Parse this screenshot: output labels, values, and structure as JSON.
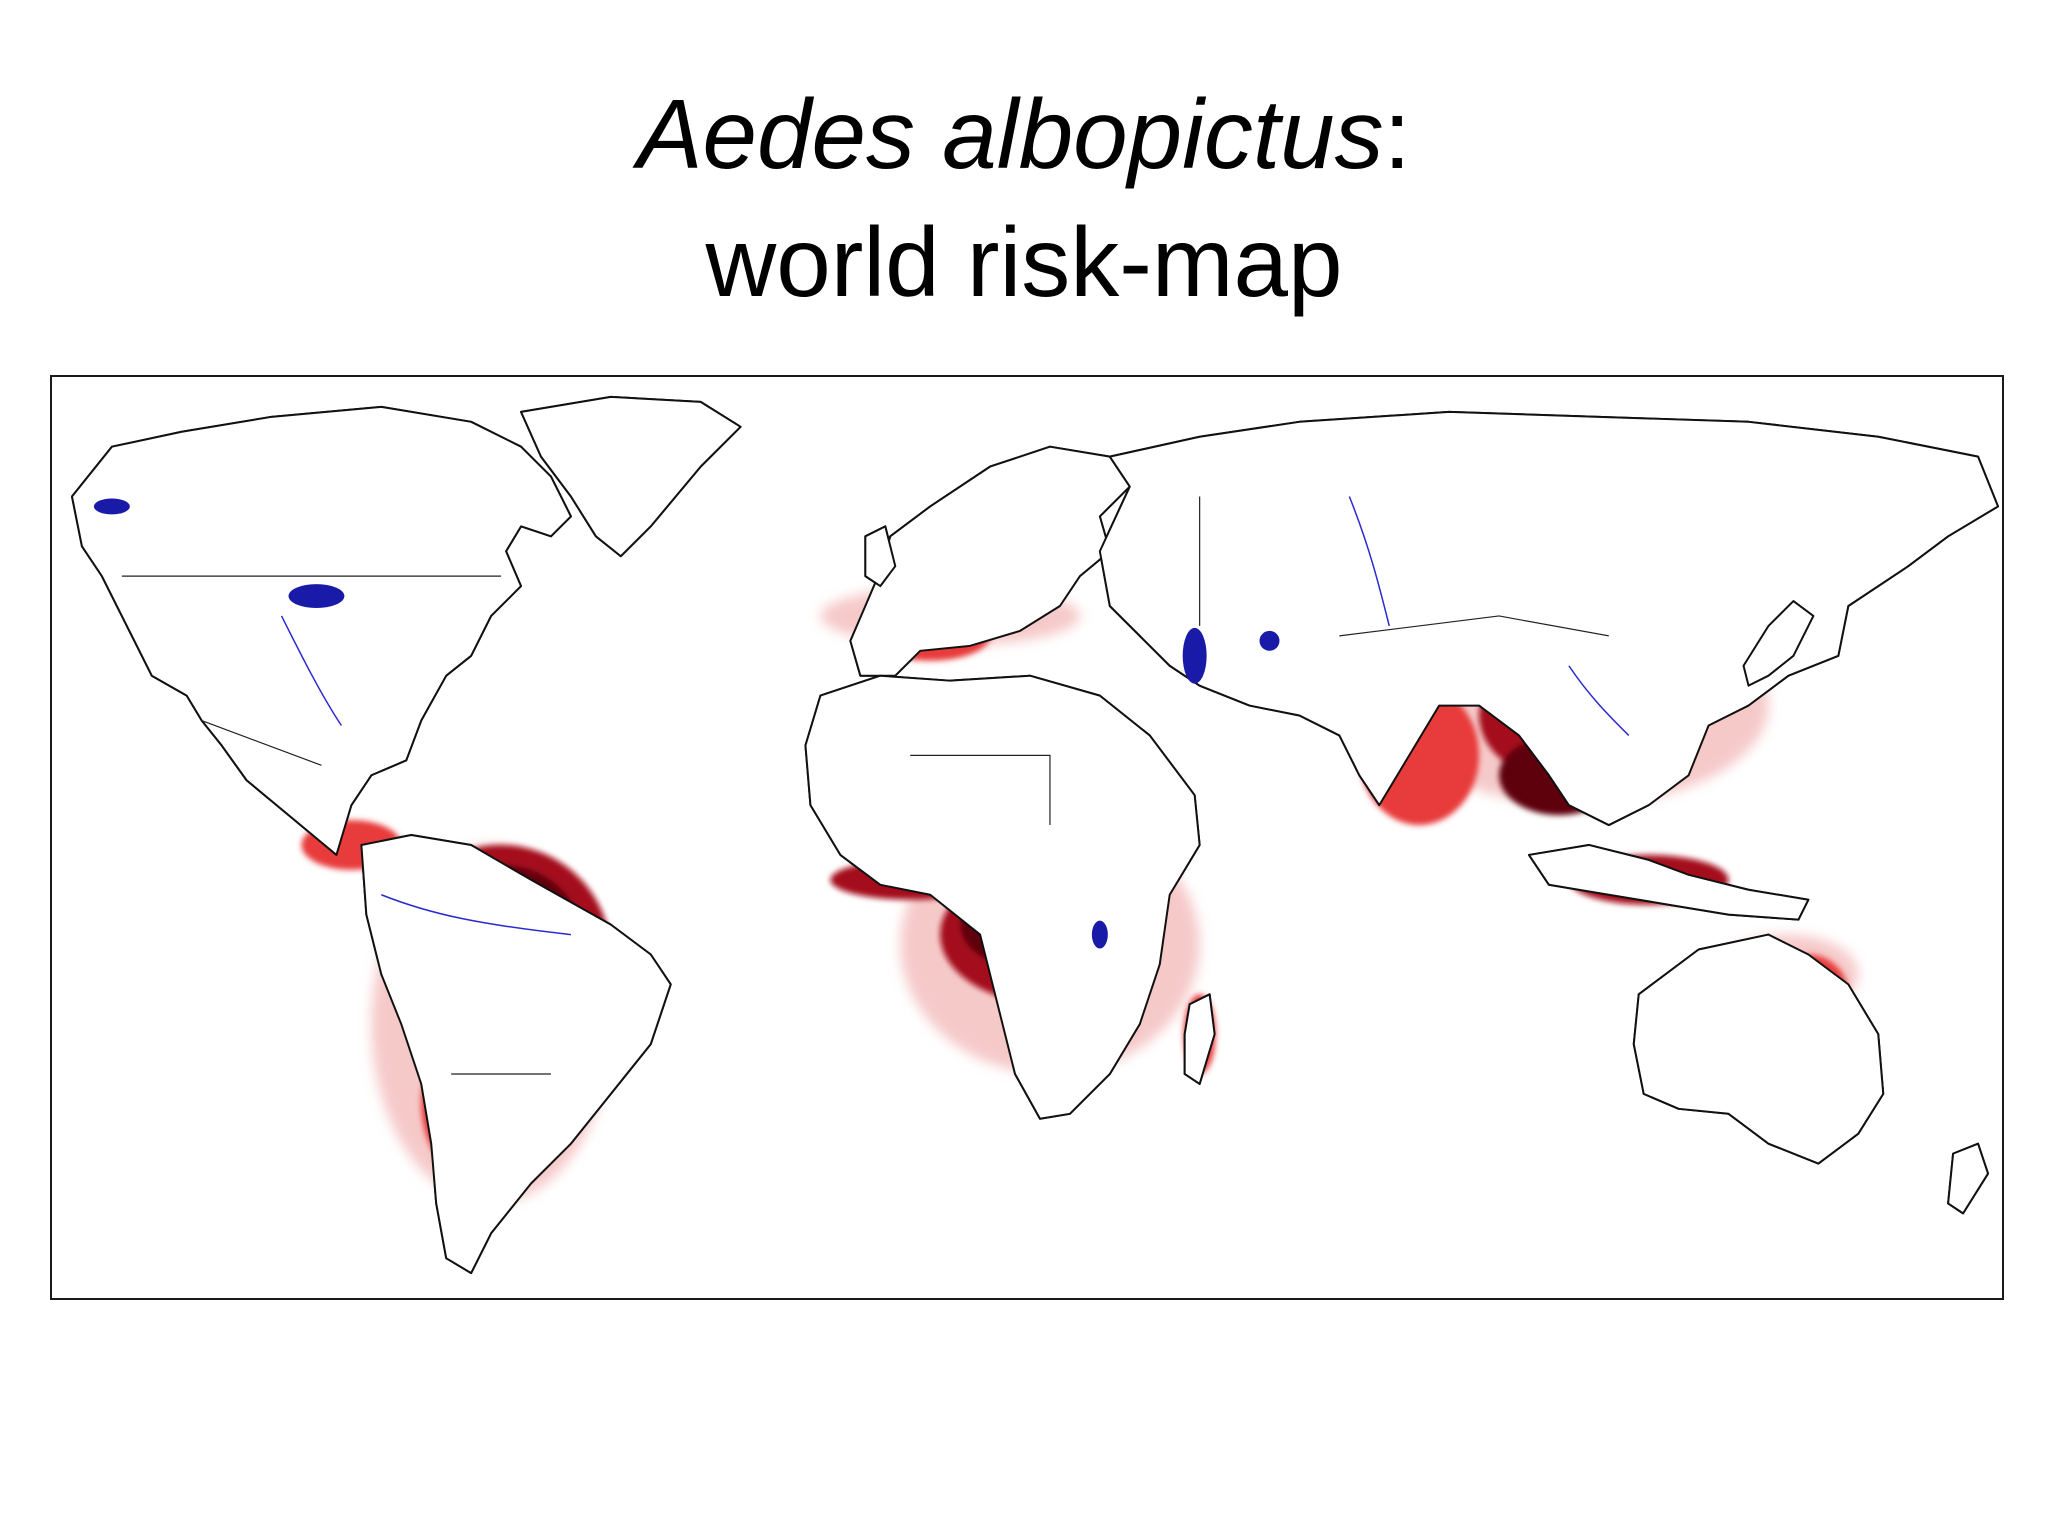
{
  "slide": {
    "title_species": "Aedes albopictus",
    "title_colon": ":",
    "title_line2": "world risk-map"
  },
  "map": {
    "colors": {
      "coastline": "#111111",
      "border": "#222222",
      "river": "#2a2ad0",
      "lake": "#1a1aa8",
      "risk_low": "#f6c9c9",
      "risk_medium": "#e83a3a",
      "risk_high": "#a40d1a",
      "risk_very_high": "#5e0010"
    }
  }
}
